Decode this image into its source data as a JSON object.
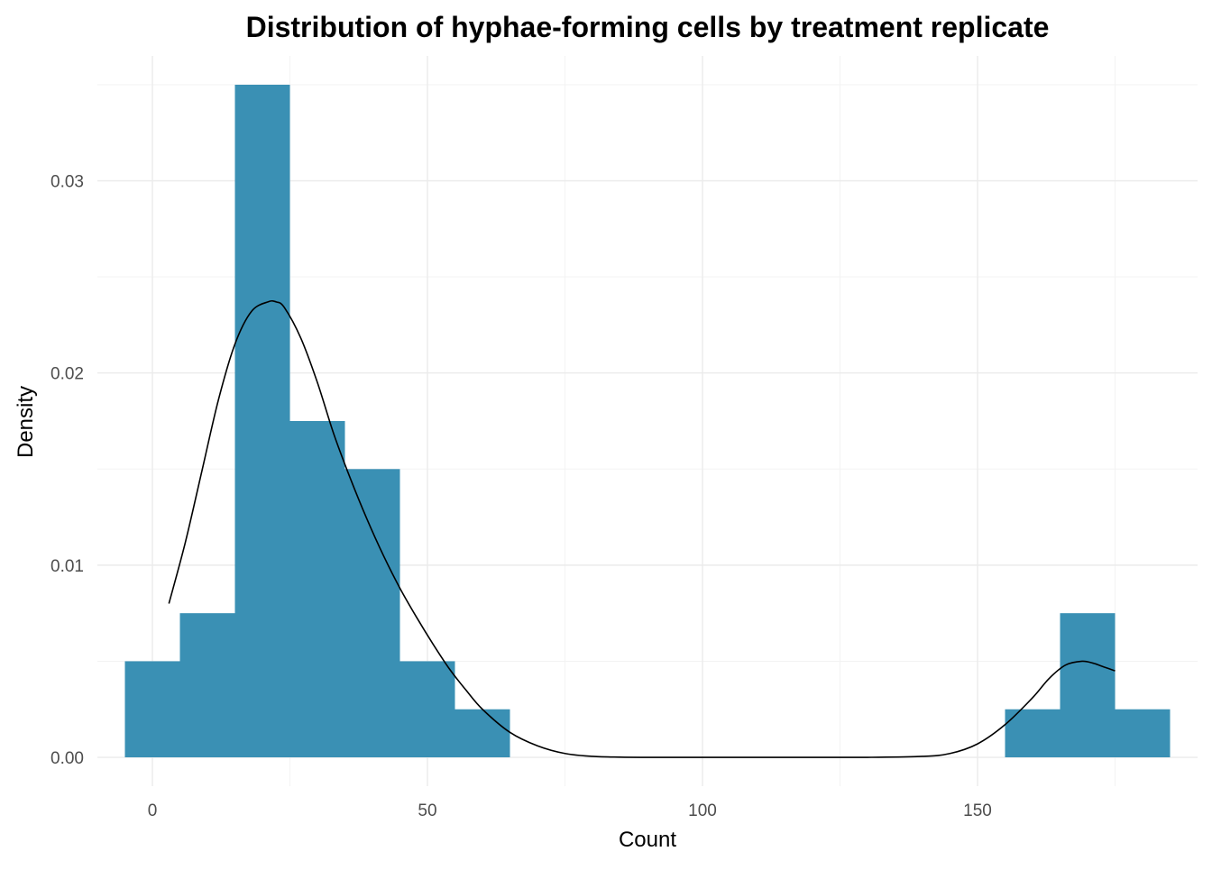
{
  "chart_data": {
    "type": "bar",
    "title": "Distribution of hyphae-forming cells by treatment replicate",
    "xlabel": "Count",
    "ylabel": "Density",
    "xlim": [
      -10,
      190
    ],
    "ylim": [
      -0.0015,
      0.0365
    ],
    "x_ticks": [
      0,
      50,
      100,
      150
    ],
    "x_tick_labels": [
      "0",
      "50",
      "100",
      "150"
    ],
    "y_ticks": [
      0.0,
      0.01,
      0.02,
      0.03
    ],
    "y_tick_labels": [
      "0.00",
      "0.01",
      "0.02",
      "0.03"
    ],
    "grid": true,
    "bar_color": "#3A90B4",
    "line_color": "#000000",
    "series": [
      {
        "kind": "histogram",
        "bins": [
          {
            "x0": -5,
            "x1": 5,
            "density": 0.005
          },
          {
            "x0": 5,
            "x1": 15,
            "density": 0.0075
          },
          {
            "x0": 15,
            "x1": 25,
            "density": 0.035
          },
          {
            "x0": 25,
            "x1": 35,
            "density": 0.0175
          },
          {
            "x0": 35,
            "x1": 45,
            "density": 0.015
          },
          {
            "x0": 45,
            "x1": 55,
            "density": 0.005
          },
          {
            "x0": 55,
            "x1": 65,
            "density": 0.0025
          },
          {
            "x0": 155,
            "x1": 165,
            "density": 0.0025
          },
          {
            "x0": 165,
            "x1": 175,
            "density": 0.0075
          },
          {
            "x0": 175,
            "x1": 185,
            "density": 0.0025
          }
        ]
      },
      {
        "kind": "density",
        "x": [
          3,
          6,
          9,
          12,
          15,
          18,
          21,
          22.5,
          24,
          27,
          30,
          33,
          36,
          39,
          42,
          45,
          48,
          51,
          54,
          57,
          60,
          65,
          70,
          75,
          80,
          85,
          90,
          100,
          110,
          120,
          130,
          140,
          145,
          150,
          155,
          160,
          163,
          166,
          169,
          171,
          173,
          175
        ],
        "y": [
          0.008,
          0.0112,
          0.0149,
          0.0186,
          0.0215,
          0.0232,
          0.0237,
          0.0237,
          0.0234,
          0.0218,
          0.0195,
          0.0168,
          0.0145,
          0.0124,
          0.0105,
          0.0088,
          0.0073,
          0.0059,
          0.0046,
          0.0035,
          0.0025,
          0.0013,
          0.0006,
          0.0002,
          5e-05,
          1e-05,
          0.0,
          0.0,
          0.0,
          0.0,
          0.0,
          5e-05,
          0.0002,
          0.0007,
          0.0017,
          0.0031,
          0.0041,
          0.0048,
          0.005,
          0.0049,
          0.0047,
          0.0045
        ]
      }
    ]
  }
}
